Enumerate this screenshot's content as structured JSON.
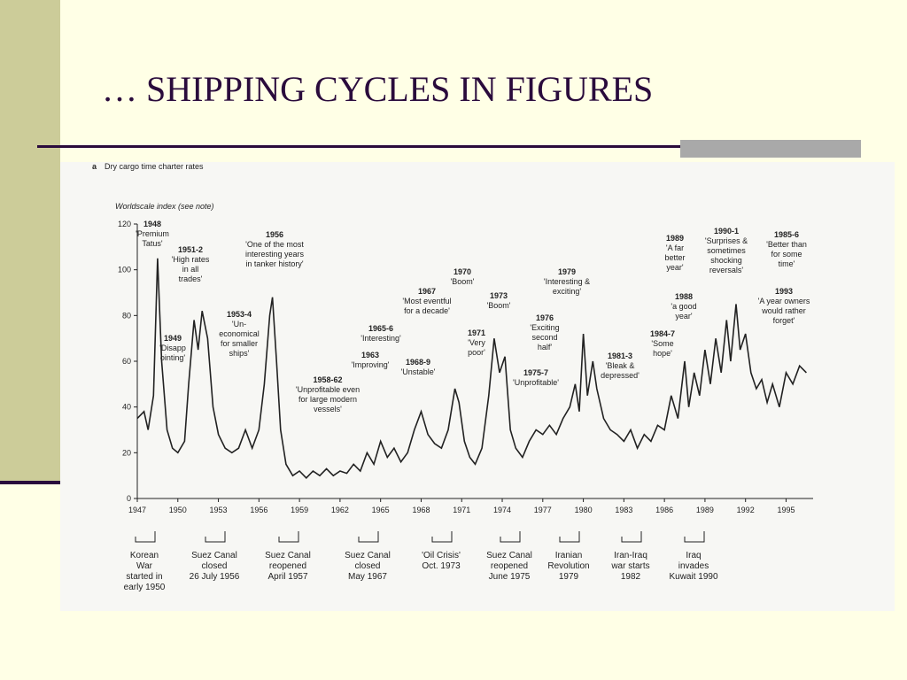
{
  "slide_title": "… SHIPPING CYCLES IN FIGURES",
  "chart_data": {
    "type": "line",
    "panel": "a",
    "title": "Dry cargo time charter rates",
    "ylabel": "Worldscale index (see note)",
    "xlim": [
      1947,
      1997
    ],
    "xticks": [
      1947,
      1950,
      1953,
      1956,
      1959,
      1962,
      1965,
      1968,
      1971,
      1974,
      1977,
      1980,
      1983,
      1986,
      1989,
      1992,
      1995
    ],
    "ylim": [
      0,
      120
    ],
    "yticks": [
      0,
      20,
      40,
      60,
      80,
      100,
      120
    ],
    "color": "#222222",
    "x": [
      1947.0,
      1947.5,
      1947.8,
      1948.2,
      1948.5,
      1948.8,
      1949.2,
      1949.6,
      1950.0,
      1950.5,
      1950.8,
      1951.2,
      1951.5,
      1951.8,
      1952.2,
      1952.6,
      1953.0,
      1953.5,
      1954.0,
      1954.5,
      1955.0,
      1955.5,
      1956.0,
      1956.4,
      1956.8,
      1957.0,
      1957.3,
      1957.6,
      1958.0,
      1958.5,
      1959.0,
      1959.5,
      1960.0,
      1960.5,
      1961.0,
      1961.5,
      1962.0,
      1962.5,
      1963.0,
      1963.5,
      1964.0,
      1964.5,
      1965.0,
      1965.5,
      1966.0,
      1966.5,
      1967.0,
      1967.5,
      1968.0,
      1968.5,
      1969.0,
      1969.5,
      1970.0,
      1970.5,
      1970.8,
      1971.2,
      1971.6,
      1972.0,
      1972.5,
      1973.0,
      1973.4,
      1973.8,
      1974.2,
      1974.6,
      1975.0,
      1975.5,
      1976.0,
      1976.5,
      1977.0,
      1977.5,
      1978.0,
      1978.5,
      1979.0,
      1979.4,
      1979.7,
      1980.0,
      1980.3,
      1980.7,
      1981.0,
      1981.5,
      1982.0,
      1982.5,
      1983.0,
      1983.5,
      1984.0,
      1984.5,
      1985.0,
      1985.5,
      1986.0,
      1986.5,
      1987.0,
      1987.5,
      1987.8,
      1988.2,
      1988.6,
      1989.0,
      1989.4,
      1989.8,
      1990.2,
      1990.6,
      1990.9,
      1991.3,
      1991.6,
      1992.0,
      1992.4,
      1992.8,
      1993.2,
      1993.6,
      1994.0,
      1994.5,
      1995.0,
      1995.5,
      1996.0,
      1996.5
    ],
    "values": [
      35,
      38,
      30,
      45,
      105,
      60,
      30,
      22,
      20,
      25,
      50,
      78,
      65,
      82,
      70,
      40,
      28,
      22,
      20,
      22,
      30,
      22,
      30,
      50,
      80,
      88,
      60,
      30,
      15,
      10,
      12,
      9,
      12,
      10,
      13,
      10,
      12,
      11,
      15,
      12,
      20,
      15,
      25,
      18,
      22,
      16,
      20,
      30,
      38,
      28,
      24,
      22,
      30,
      48,
      42,
      25,
      18,
      15,
      22,
      45,
      70,
      55,
      62,
      30,
      22,
      18,
      25,
      30,
      28,
      32,
      28,
      35,
      40,
      50,
      38,
      72,
      45,
      60,
      48,
      35,
      30,
      28,
      25,
      30,
      22,
      28,
      25,
      32,
      30,
      45,
      35,
      60,
      40,
      55,
      45,
      65,
      50,
      70,
      55,
      78,
      60,
      85,
      65,
      72,
      55,
      48,
      52,
      42,
      50,
      40,
      55,
      50,
      58,
      55
    ],
    "annotations": [
      {
        "lines": [
          "1948",
          "'Premium",
          "Tatus'"
        ]
      },
      {
        "lines": [
          "1951-2",
          "'High rates",
          "in all",
          "trades'"
        ]
      },
      {
        "lines": [
          "1956",
          "'One of the most",
          "interesting years",
          "in tanker history'"
        ]
      },
      {
        "lines": [
          "1949",
          "'Disapp",
          "ointing'"
        ]
      },
      {
        "lines": [
          "1953-4",
          "'Un-",
          "economical",
          "for smaller",
          "ships'"
        ]
      },
      {
        "lines": [
          "1958-62",
          "'Unprofitable even",
          "for large modern",
          "vessels'"
        ]
      },
      {
        "lines": [
          "1965-6",
          "'Interesting'"
        ]
      },
      {
        "lines": [
          "1963",
          "'Improving'"
        ]
      },
      {
        "lines": [
          "1967",
          "'Most eventful",
          "for a decade'"
        ]
      },
      {
        "lines": [
          "1970",
          "'Boom'"
        ]
      },
      {
        "lines": [
          "1968-9",
          "'Unstable'"
        ]
      },
      {
        "lines": [
          "1973",
          "'Boom'"
        ]
      },
      {
        "lines": [
          "1971",
          "'Very",
          "poor'"
        ]
      },
      {
        "lines": [
          "1979",
          "'Interesting &",
          "exciting'"
        ]
      },
      {
        "lines": [
          "1976",
          "'Exciting",
          "second",
          "half'"
        ]
      },
      {
        "lines": [
          "1975-7",
          "'Unprofitable'"
        ]
      },
      {
        "lines": [
          "1981-3",
          "'Bleak &",
          "depressed'"
        ]
      },
      {
        "lines": [
          "1989",
          "'A far",
          "better",
          "year'"
        ]
      },
      {
        "lines": [
          "1988",
          "'a good",
          "year'"
        ]
      },
      {
        "lines": [
          "1984-7",
          "'Some",
          "hope'"
        ]
      },
      {
        "lines": [
          "1990-1",
          "'Surprises &",
          "sometimes",
          "shocking",
          "reversals'"
        ]
      },
      {
        "lines": [
          "1985-6",
          "'Better than",
          "for some",
          "time'"
        ]
      },
      {
        "lines": [
          "1993",
          "'A year owners",
          "would rather",
          "forget'"
        ]
      }
    ],
    "events": [
      {
        "lines": [
          "Korean",
          "War",
          "started in",
          "early 1950"
        ]
      },
      {
        "lines": [
          "Suez Canal",
          "closed",
          "26 July 1956"
        ]
      },
      {
        "lines": [
          "Suez Canal",
          "reopened",
          "April 1957"
        ]
      },
      {
        "lines": [
          "Suez Canal",
          "closed",
          "May 1967"
        ]
      },
      {
        "lines": [
          "'Oil Crisis'",
          "Oct. 1973"
        ]
      },
      {
        "lines": [
          "Suez Canal",
          "reopened",
          "June 1975"
        ]
      },
      {
        "lines": [
          "Iranian",
          "Revolution",
          "1979"
        ]
      },
      {
        "lines": [
          "Iran-Iraq",
          "war starts",
          "1982"
        ]
      },
      {
        "lines": [
          "Iraq",
          "invades",
          "Kuwait 1990"
        ]
      }
    ]
  }
}
